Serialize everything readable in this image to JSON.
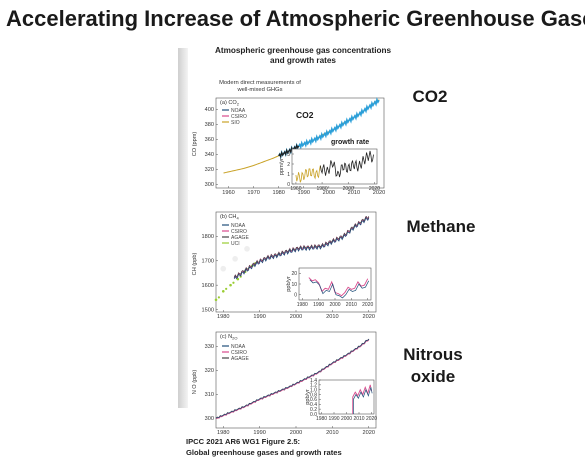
{
  "slide": {
    "title": "Accelerating Increase of Atmospheric Greenhouse Gases",
    "figure_header_line1": "Atmospheric greenhouse gas concentrations",
    "figure_header_line2": "and growth rates",
    "sub_header_line1": "Modern direct measurements of",
    "sub_header_line2": "well-mixed GHGs",
    "caption_line1": "IPCC 2021 AR6 WG1 Figure 2.5:",
    "caption_line2": "Global greenhouse gases and growth rates"
  },
  "labels": {
    "co2": "CO2",
    "methane": "Methane",
    "nitrous_line1": "Nitrous",
    "nitrous_line2": "oxide",
    "co2_inline": "CO2",
    "growth_rate": "growth rate"
  },
  "colors": {
    "noaa": "#1f4e79",
    "csiro": "#d94a8c",
    "sio": "#c9a227",
    "agage": "#444444",
    "uci": "#9acd32",
    "co2_blue": "#2b9fd9",
    "co2_dark": "#222222"
  },
  "chart_data": [
    {
      "type": "line",
      "panel_label": "(a) CO",
      "panel_sub": "2",
      "ylabel": "CO (ppm)",
      "xlim": [
        1955,
        2022
      ],
      "ylim": [
        295,
        415
      ],
      "x_ticks": [
        1960,
        1970,
        1980,
        1990,
        2000,
        2010,
        2020
      ],
      "y_ticks": [
        300,
        320,
        340,
        360,
        380,
        400
      ],
      "legend": [
        "NOAA",
        "CSIRO",
        "SIO"
      ],
      "series": [
        {
          "name": "SIO",
          "x": [
            1958,
            1962,
            1966,
            1970,
            1974,
            1978,
            1982,
            1986,
            1990,
            1994,
            1998,
            2002,
            2006,
            2010,
            2014,
            2018,
            2020
          ],
          "y": [
            315,
            318,
            321,
            325,
            330,
            335,
            341,
            347,
            354,
            359,
            367,
            373,
            382,
            389,
            398,
            408,
            413
          ]
        },
        {
          "name": "NOAA",
          "x": [
            1980,
            1984,
            1988,
            1992,
            1996,
            2000,
            2004,
            2008,
            2012,
            2016,
            2020
          ],
          "y": [
            338,
            344,
            351,
            356,
            362,
            369,
            377,
            385,
            393,
            403,
            412
          ]
        }
      ],
      "inset": {
        "ylabel": "ppm/yr",
        "xlim": [
          1957,
          2022
        ],
        "ylim": [
          0,
          3.5
        ],
        "x_ticks": [
          1960,
          1980,
          2000,
          2020
        ],
        "y_ticks": [
          0,
          1,
          2,
          3
        ],
        "series": [
          {
            "name": "NOAA",
            "x": [
              1960,
              1964,
              1968,
              1972,
              1976,
              1980,
              1984,
              1988,
              1992,
              1996,
              2000,
              2004,
              2008,
              2012,
              2016,
              2020
            ],
            "y": [
              0.8,
              0.6,
              1.1,
              1.2,
              0.9,
              1.6,
              1.2,
              2.2,
              0.8,
              1.8,
              1.5,
              2.0,
              1.7,
              2.4,
              2.9,
              2.4
            ]
          }
        ]
      }
    },
    {
      "type": "line",
      "panel_label": "(b) CH",
      "panel_sub": "4",
      "ylabel": "CH (ppb)",
      "xlim": [
        1978,
        2022
      ],
      "ylim": [
        1490,
        1900
      ],
      "x_ticks": [
        1980,
        1990,
        2000,
        2010,
        2020
      ],
      "y_ticks": [
        1500,
        1600,
        1700,
        1800
      ],
      "legend": [
        "NOAA",
        "CSIRO",
        "AGAGE",
        "UCI"
      ],
      "series": [
        {
          "name": "NOAA",
          "x": [
            1983,
            1986,
            1989,
            1992,
            1995,
            1998,
            2001,
            2004,
            2007,
            2010,
            2013,
            2016,
            2019,
            2020
          ],
          "y": [
            1630,
            1660,
            1690,
            1712,
            1725,
            1740,
            1752,
            1755,
            1760,
            1780,
            1800,
            1840,
            1870,
            1880
          ]
        },
        {
          "name": "UCI",
          "x": [
            1978,
            1980,
            1982,
            1984,
            1986,
            1988
          ],
          "y": [
            1540,
            1575,
            1600,
            1625,
            1655,
            1680
          ]
        }
      ],
      "inset": {
        "ylabel": "ppb/yr",
        "xlim": [
          1978,
          2022
        ],
        "ylim": [
          -5,
          25
        ],
        "x_ticks": [
          1980,
          1990,
          2000,
          2010,
          2020
        ],
        "y_ticks": [
          0,
          10,
          20
        ],
        "series": [
          {
            "name": "NOAA",
            "x": [
              1984,
              1986,
              1988,
              1990,
              1992,
              1994,
              1996,
              1998,
              2000,
              2002,
              2004,
              2006,
              2008,
              2010,
              2012,
              2014,
              2016,
              2018,
              2020
            ],
            "y": [
              16,
              13,
              14,
              11,
              3,
              6,
              5,
              12,
              2,
              1,
              -1,
              2,
              7,
              5,
              6,
              12,
              8,
              9,
              15
            ]
          }
        ]
      }
    },
    {
      "type": "line",
      "panel_label": "(c) N",
      "panel_sub": "2O",
      "ylabel": "N O (ppb)",
      "xlim": [
        1978,
        2022
      ],
      "ylim": [
        296,
        336
      ],
      "x_ticks": [
        1980,
        1990,
        2000,
        2010,
        2020
      ],
      "y_ticks": [
        300,
        310,
        320,
        330
      ],
      "legend": [
        "NOAA",
        "CSIRO",
        "AGAGE"
      ],
      "series": [
        {
          "name": "AGAGE",
          "x": [
            1978,
            1982,
            1986,
            1990,
            1994,
            1998,
            2002,
            2006,
            2010,
            2014,
            2018,
            2020
          ],
          "y": [
            300,
            302.5,
            305,
            308,
            310.5,
            313,
            316,
            319,
            323,
            326.5,
            330.5,
            333
          ]
        }
      ],
      "inset": {
        "ylabel": "ppb/yr",
        "xlim": [
          1978,
          2022
        ],
        "ylim": [
          0,
          1.4
        ],
        "x_ticks": [
          1980,
          1990,
          2000,
          2010,
          2020
        ],
        "y_ticks": [
          0,
          0.2,
          0.4,
          0.6,
          0.8,
          1.0,
          1.2,
          1.4
        ],
        "series": [
          {
            "name": "NOAA",
            "x": [
              2005,
              2007,
              2009,
              2011,
              2013,
              2015,
              2017,
              2019,
              2020
            ],
            "y": [
              0.7,
              0.9,
              0.75,
              1.0,
              0.8,
              1.1,
              0.85,
              1.2,
              0.95
            ]
          }
        ]
      }
    }
  ]
}
